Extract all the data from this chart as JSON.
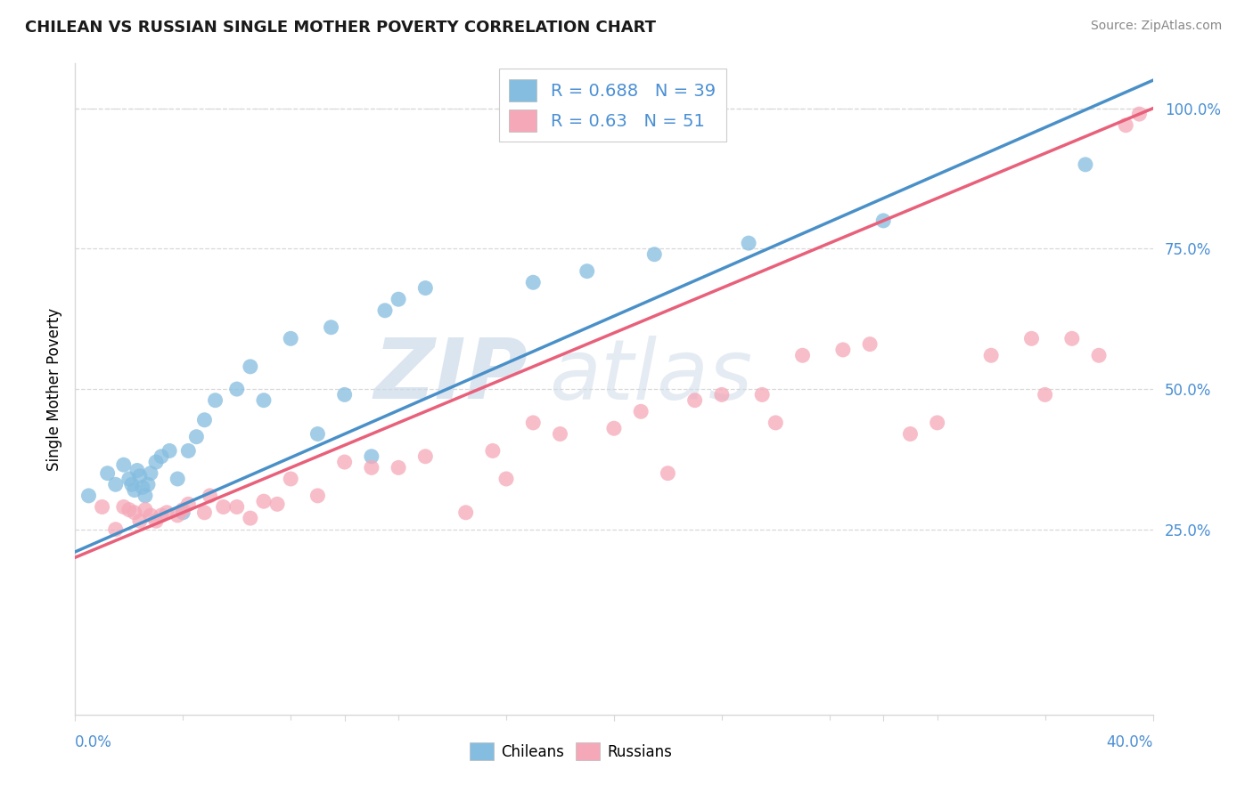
{
  "title": "CHILEAN VS RUSSIAN SINGLE MOTHER POVERTY CORRELATION CHART",
  "source": "Source: ZipAtlas.com",
  "ylabel": "Single Mother Poverty",
  "xlim": [
    0.0,
    0.4
  ],
  "ylim": [
    -0.08,
    1.08
  ],
  "chilean_color": "#85bde0",
  "russian_color": "#f5a8b8",
  "chilean_line_color": "#4a90c8",
  "russian_line_color": "#e8607a",
  "ytick_color": "#4a8fd4",
  "chilean_R": 0.688,
  "chilean_N": 39,
  "russian_R": 0.63,
  "russian_N": 51,
  "watermark_zip": "ZIP",
  "watermark_atlas": "atlas",
  "grid_color": "#d8d8d8",
  "chilean_x": [
    0.005,
    0.012,
    0.015,
    0.018,
    0.02,
    0.021,
    0.022,
    0.023,
    0.024,
    0.025,
    0.026,
    0.027,
    0.028,
    0.03,
    0.032,
    0.035,
    0.038,
    0.04,
    0.042,
    0.045,
    0.048,
    0.052,
    0.06,
    0.065,
    0.07,
    0.08,
    0.09,
    0.095,
    0.1,
    0.11,
    0.115,
    0.12,
    0.13,
    0.17,
    0.19,
    0.215,
    0.25,
    0.3,
    0.375
  ],
  "chilean_y": [
    0.31,
    0.35,
    0.33,
    0.365,
    0.34,
    0.33,
    0.32,
    0.355,
    0.345,
    0.325,
    0.31,
    0.33,
    0.35,
    0.37,
    0.38,
    0.39,
    0.34,
    0.28,
    0.39,
    0.415,
    0.445,
    0.48,
    0.5,
    0.54,
    0.48,
    0.59,
    0.42,
    0.61,
    0.49,
    0.38,
    0.64,
    0.66,
    0.68,
    0.69,
    0.71,
    0.74,
    0.76,
    0.8,
    0.9
  ],
  "russian_x": [
    0.01,
    0.015,
    0.018,
    0.02,
    0.022,
    0.024,
    0.026,
    0.028,
    0.03,
    0.032,
    0.034,
    0.038,
    0.042,
    0.048,
    0.055,
    0.065,
    0.075,
    0.09,
    0.1,
    0.11,
    0.12,
    0.13,
    0.145,
    0.155,
    0.17,
    0.18,
    0.2,
    0.21,
    0.22,
    0.23,
    0.24,
    0.255,
    0.26,
    0.27,
    0.285,
    0.295,
    0.31,
    0.32,
    0.34,
    0.355,
    0.36,
    0.37,
    0.38,
    0.39,
    0.395,
    0.04,
    0.05,
    0.06,
    0.07,
    0.08,
    0.16
  ],
  "russian_y": [
    0.29,
    0.25,
    0.29,
    0.285,
    0.28,
    0.265,
    0.285,
    0.275,
    0.265,
    0.275,
    0.28,
    0.275,
    0.295,
    0.28,
    0.29,
    0.27,
    0.295,
    0.31,
    0.37,
    0.36,
    0.36,
    0.38,
    0.28,
    0.39,
    0.44,
    0.42,
    0.43,
    0.46,
    0.35,
    0.48,
    0.49,
    0.49,
    0.44,
    0.56,
    0.57,
    0.58,
    0.42,
    0.44,
    0.56,
    0.59,
    0.49,
    0.59,
    0.56,
    0.97,
    0.99,
    0.285,
    0.31,
    0.29,
    0.3,
    0.34,
    0.34
  ]
}
